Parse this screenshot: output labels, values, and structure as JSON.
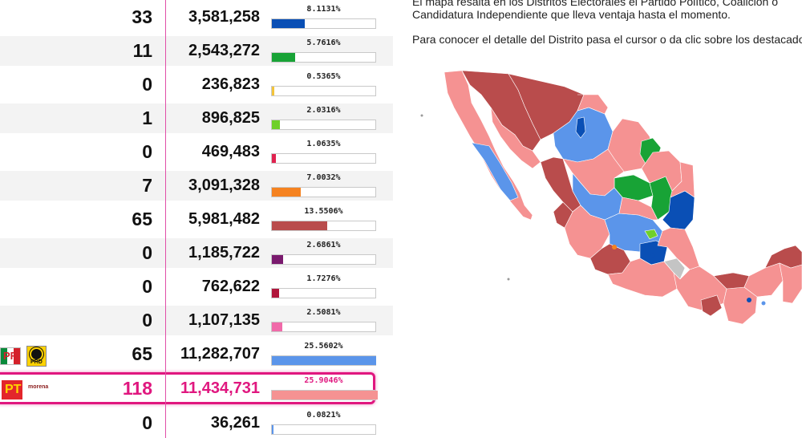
{
  "results": {
    "rows": [
      {
        "seats": "33",
        "votes": "3,581,258",
        "pct": "8.1131%",
        "fill": 0.0811,
        "color": "#0a4fb5"
      },
      {
        "seats": "11",
        "votes": "2,543,272",
        "pct": "5.7616%",
        "fill": 0.0576,
        "color": "#18a336"
      },
      {
        "seats": "0",
        "votes": "236,823",
        "pct": "0.5365%",
        "fill": 0.0054,
        "color": "#f3c43a"
      },
      {
        "seats": "1",
        "votes": "896,825",
        "pct": "2.0316%",
        "fill": 0.0203,
        "color": "#6fd02a"
      },
      {
        "seats": "0",
        "votes": "469,483",
        "pct": "1.0635%",
        "fill": 0.0106,
        "color": "#e0224f"
      },
      {
        "seats": "7",
        "votes": "3,091,328",
        "pct": "7.0032%",
        "fill": 0.07,
        "color": "#f58220"
      },
      {
        "seats": "65",
        "votes": "5,981,482",
        "pct": "13.5506%",
        "fill": 0.1355,
        "color": "#b94c4c"
      },
      {
        "seats": "0",
        "votes": "1,185,722",
        "pct": "2.6861%",
        "fill": 0.0269,
        "color": "#7a1a6e"
      },
      {
        "seats": "0",
        "votes": "762,622",
        "pct": "1.7276%",
        "fill": 0.0173,
        "color": "#b0163b"
      },
      {
        "seats": "0",
        "votes": "1,107,135",
        "pct": "2.5081%",
        "fill": 0.0251,
        "color": "#f06aa9"
      },
      {
        "seats": "65",
        "votes": "11,282,707",
        "pct": "25.5602%",
        "fill": 0.2556,
        "color": "#5b95ea"
      },
      {
        "seats": "118",
        "votes": "11,434,731",
        "pct": "25.9046%",
        "fill": 0.259,
        "color": "#f59292"
      },
      {
        "seats": "0",
        "votes": "36,261",
        "pct": "0.0821%",
        "fill": 0.0008,
        "color": "#5b95ea"
      }
    ],
    "logos": {
      "pri": "PRI",
      "prd": "PRD",
      "pt": "PT",
      "morena": "morena"
    }
  },
  "map_panel": {
    "line1": "El mapa resalta en los Distritos Electorales el Partido Político, Coalición o",
    "line2": "Candidatura Independiente que lleva ventaja hasta el momento.",
    "line3": "Para conocer el detalle del Distrito pasa el cursor o da clic sobre los destacados"
  },
  "colors": {
    "accent": "#e0177f",
    "divider": "#e14fa8"
  }
}
